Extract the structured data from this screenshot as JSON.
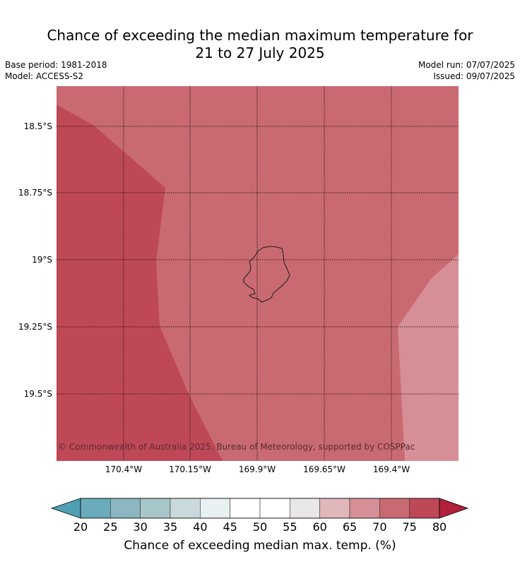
{
  "title_line1": "Chance of exceeding the median maximum temperature for",
  "title_line2": "21 to 27 July 2025",
  "meta_left": [
    "Base period: 1981-2018",
    "Model: ACCESS-S2"
  ],
  "meta_right": [
    "Model run: 07/07/2025",
    "Issued: 09/07/2025"
  ],
  "map": {
    "lat_ticks": [
      "18.5°S",
      "18.75°S",
      "19°S",
      "19.25°S",
      "19.5°S"
    ],
    "lon_ticks": [
      "170.4°W",
      "170.15°W",
      "169.9°W",
      "169.65°W",
      "169.4°W"
    ],
    "copyright": "© Commonwealth of Australia 2025, Bureau of Meteorology, supported by COSPPac",
    "zones": [
      {
        "label": "70-75",
        "color": "#c96a72"
      },
      {
        "label": "75-80",
        "color": "#bf4857"
      },
      {
        "label": "65-70",
        "color": "#d68f96"
      }
    ]
  },
  "colorbar": {
    "ticks": [
      "20",
      "25",
      "30",
      "35",
      "40",
      "45",
      "50",
      "55",
      "60",
      "65",
      "70",
      "75",
      "80"
    ],
    "colors": [
      "#6aacbc",
      "#8bb6c2",
      "#a7c6ca",
      "#c9d9dc",
      "#e8f0f1",
      "#ffffff",
      "#ffffff",
      "#e9e6e7",
      "#e0b7bb",
      "#d68f96",
      "#c96a72",
      "#bf4857"
    ],
    "under_color": "#4ea0b2",
    "over_color": "#b21f3c",
    "label": "Chance of exceeding median max. temp. (%)"
  }
}
